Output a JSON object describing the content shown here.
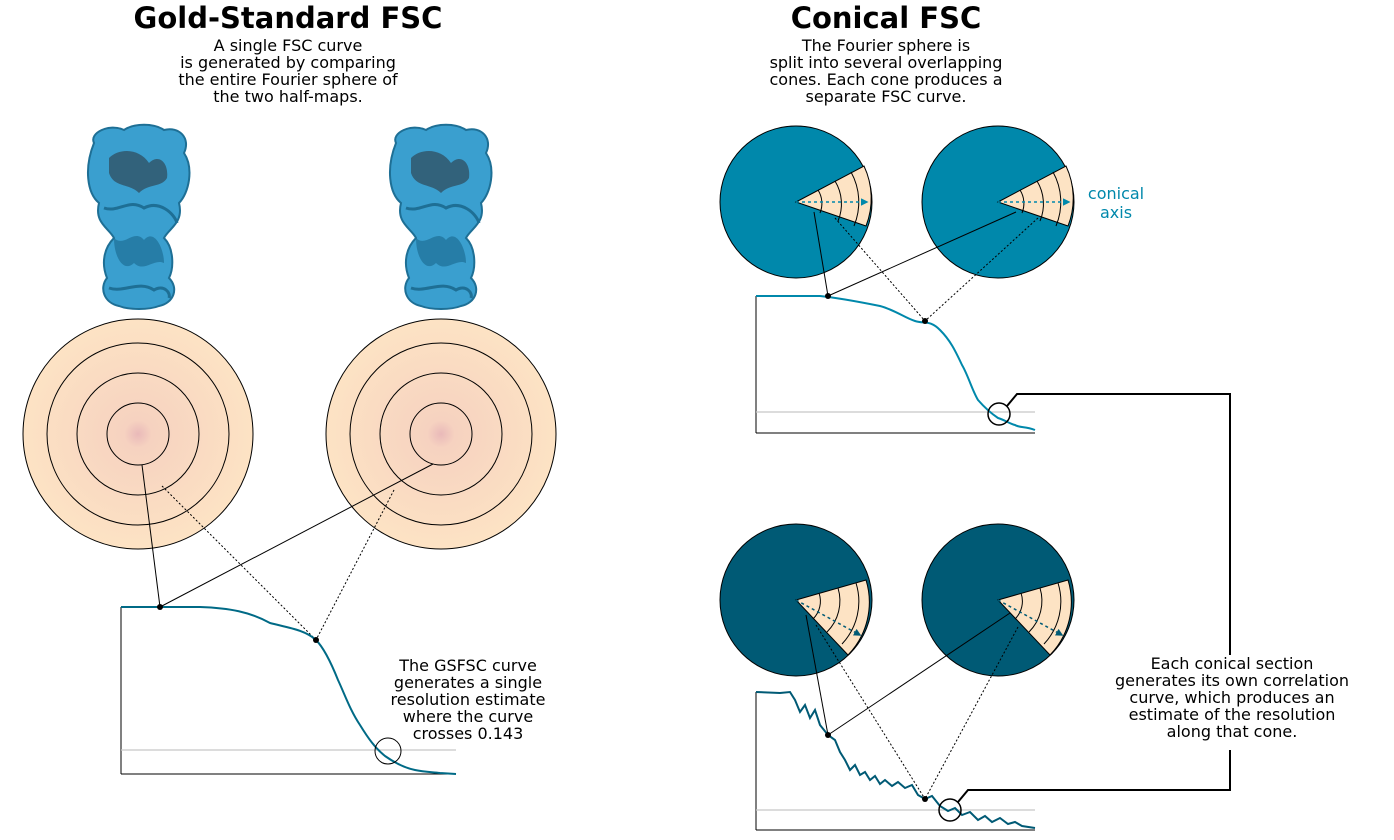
{
  "left": {
    "title": "Gold-Standard FSC",
    "description": "A single FSC curve\nis generated by comparing\nthe entire Fourier sphere of\nthe two half-maps.",
    "note": "The GSFSC curve\ngenerates a single\nresolution estimate\nwhere the curve\ncrosses 0.143"
  },
  "right": {
    "title": "Conical FSC",
    "description": "The Fourier sphere is\nsplit into several overlapping\ncones. Each cone produces a\nseparate FSC curve.",
    "axis_label_line1": "conical",
    "axis_label_line2": "axis",
    "note": "Each conical section\ngenerates its own correlation\ncurve, which produces an\nestimate of the resolution\nalong that cone."
  },
  "colors": {
    "cone_light": "#0088ab",
    "cone_dark": "#005a75",
    "curve": "#006a86",
    "sphere_fill": "#fde3c4",
    "protein": "#3a9fcf",
    "threshold": "#c8c8c8"
  }
}
